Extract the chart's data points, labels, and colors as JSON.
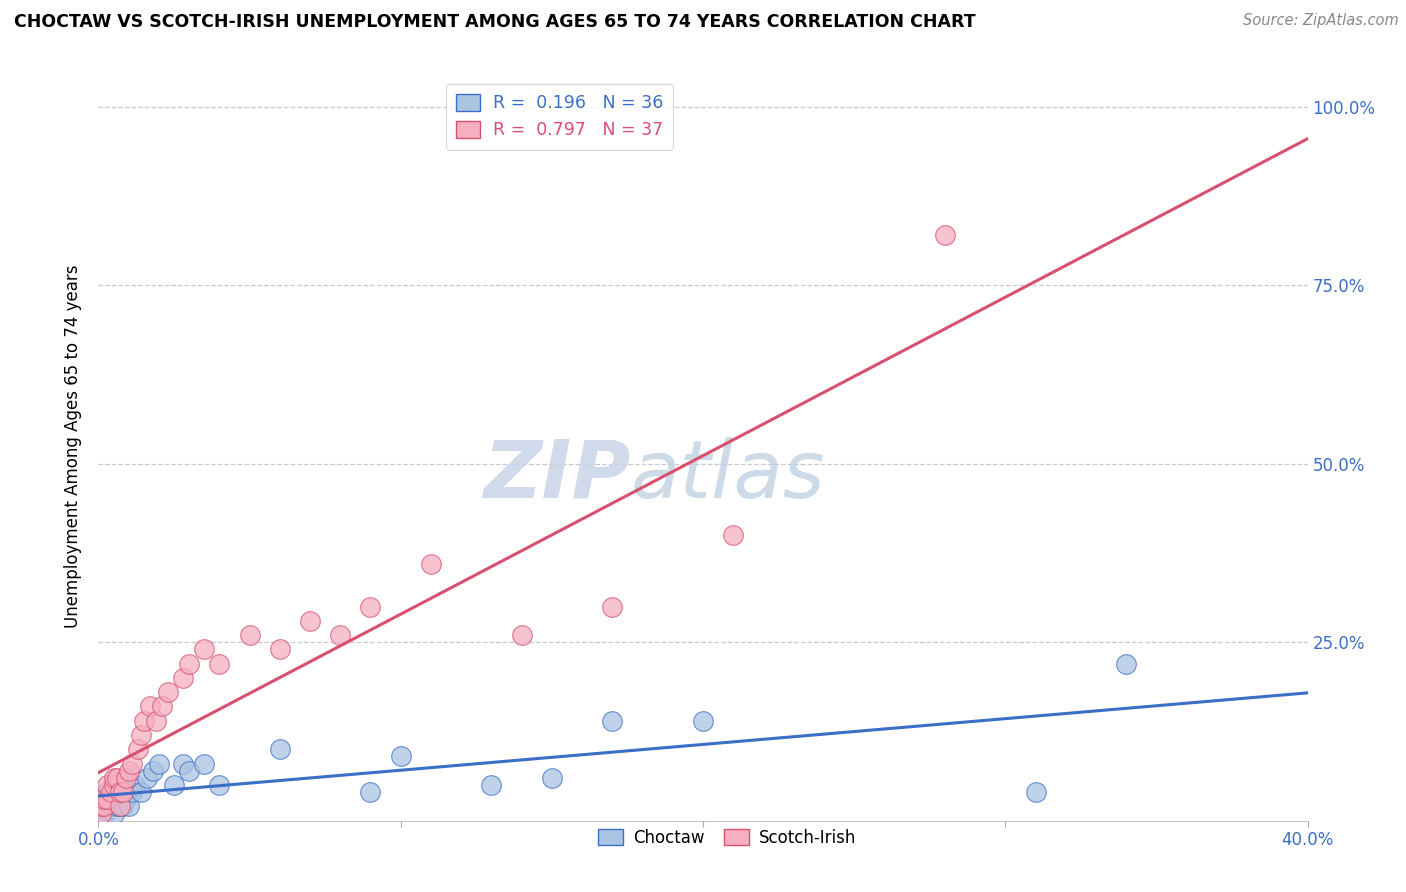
{
  "title": "CHOCTAW VS SCOTCH-IRISH UNEMPLOYMENT AMONG AGES 65 TO 74 YEARS CORRELATION CHART",
  "source": "Source: ZipAtlas.com",
  "ylabel_label": "Unemployment Among Ages 65 to 74 years",
  "xlim": [
    0.0,
    0.4
  ],
  "ylim": [
    0.0,
    1.05
  ],
  "xticks": [
    0.0,
    0.1,
    0.2,
    0.3,
    0.4
  ],
  "xtick_labels": [
    "0.0%",
    "",
    "",
    "",
    "40.0%"
  ],
  "ytick_positions": [
    0.25,
    0.5,
    0.75,
    1.0
  ],
  "ytick_labels_right": [
    "25.0%",
    "50.0%",
    "75.0%",
    "100.0%"
  ],
  "choctaw_R": 0.196,
  "choctaw_N": 36,
  "scotch_irish_R": 0.797,
  "scotch_irish_N": 37,
  "choctaw_color": "#aac4e2",
  "scotch_irish_color": "#f5afc0",
  "choctaw_line_color": "#3b6fc7",
  "scotch_irish_line_color": "#d94f6e",
  "watermark": "ZIPatlas",
  "watermark_color": "#cdd8ea",
  "grid_color": "#c8c8d0",
  "background_color": "#ffffff",
  "choctaw_x": [
    0.001,
    0.001,
    0.002,
    0.002,
    0.003,
    0.003,
    0.004,
    0.004,
    0.005,
    0.005,
    0.006,
    0.006,
    0.007,
    0.008,
    0.009,
    0.01,
    0.011,
    0.012,
    0.014,
    0.016,
    0.018,
    0.02,
    0.025,
    0.028,
    0.03,
    0.035,
    0.04,
    0.06,
    0.09,
    0.1,
    0.13,
    0.15,
    0.17,
    0.2,
    0.31,
    0.34
  ],
  "choctaw_y": [
    0.01,
    0.02,
    0.01,
    0.03,
    0.02,
    0.04,
    0.02,
    0.03,
    0.01,
    0.03,
    0.02,
    0.04,
    0.02,
    0.02,
    0.03,
    0.02,
    0.04,
    0.05,
    0.04,
    0.06,
    0.07,
    0.08,
    0.05,
    0.08,
    0.07,
    0.08,
    0.05,
    0.1,
    0.04,
    0.09,
    0.05,
    0.06,
    0.14,
    0.14,
    0.04,
    0.22
  ],
  "scotch_irish_x": [
    0.001,
    0.001,
    0.002,
    0.002,
    0.003,
    0.003,
    0.004,
    0.005,
    0.005,
    0.006,
    0.007,
    0.007,
    0.008,
    0.009,
    0.01,
    0.011,
    0.013,
    0.014,
    0.015,
    0.017,
    0.019,
    0.021,
    0.023,
    0.028,
    0.03,
    0.035,
    0.04,
    0.05,
    0.06,
    0.07,
    0.08,
    0.09,
    0.11,
    0.14,
    0.17,
    0.21,
    0.28
  ],
  "scotch_irish_y": [
    0.01,
    0.02,
    0.02,
    0.03,
    0.03,
    0.05,
    0.04,
    0.05,
    0.06,
    0.06,
    0.02,
    0.04,
    0.04,
    0.06,
    0.07,
    0.08,
    0.1,
    0.12,
    0.14,
    0.16,
    0.14,
    0.16,
    0.18,
    0.2,
    0.22,
    0.24,
    0.22,
    0.26,
    0.24,
    0.28,
    0.26,
    0.3,
    0.36,
    0.26,
    0.3,
    0.4,
    0.82
  ]
}
